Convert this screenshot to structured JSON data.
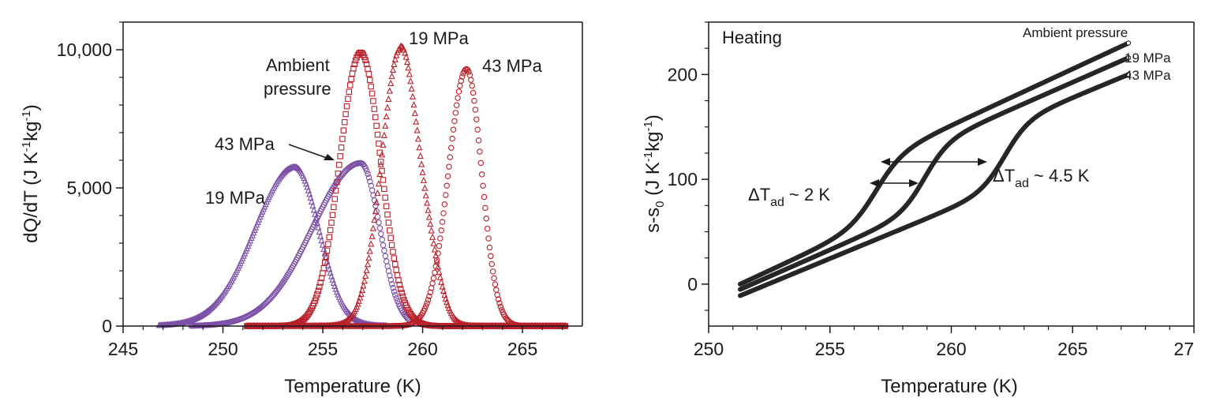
{
  "chart_data": [
    {
      "type": "scatter",
      "panel": "left",
      "xlabel": "Temperature (K)",
      "ylabel_main": "dQ/dT (J K",
      "ylabel_exp1": "-1",
      "ylabel_mid": "kg",
      "ylabel_exp2": "-1",
      "ylabel_end": ")",
      "xlim": [
        245,
        268
      ],
      "ylim": [
        0,
        11000
      ],
      "xticks": [
        "245",
        "250",
        "255",
        "260",
        "265"
      ],
      "yticks": [
        "0",
        "5,000",
        "10,000"
      ],
      "ytick_values": [
        0,
        5000,
        10000
      ],
      "grid": false,
      "annotations": {
        "label_19_left": "19 MPa",
        "label_43_left": "43 MPa",
        "label_ambient_1": "Ambient",
        "label_ambient_2": "pressure",
        "label_19_right": "19 MPa",
        "label_43_right": "43 MPa"
      },
      "series": [
        {
          "group": "cooling",
          "pressure": "19 MPa",
          "marker": "triangle",
          "color": "#7b4fa6",
          "x_range": [
            246.8,
            258.2
          ],
          "peak_x": 253.6,
          "peak_y": 5750,
          "sigma_left": 2.0,
          "sigma_right": 1.2
        },
        {
          "group": "cooling",
          "pressure": "43 MPa",
          "marker": "circle",
          "color": "#7b4fa6",
          "x_range": [
            248.4,
            259.4
          ],
          "peak_x": 256.9,
          "peak_y": 5900,
          "sigma_left": 2.4,
          "sigma_right": 0.95
        },
        {
          "group": "heating",
          "pressure": "Ambient pressure",
          "marker": "square",
          "color": "#b8202a",
          "x_range": [
            251.2,
            267.2
          ],
          "peak_x": 256.9,
          "peak_y": 9900,
          "sigma_left": 1.05,
          "sigma_right": 1.0
        },
        {
          "group": "heating",
          "pressure": "19 MPa",
          "marker": "triangle",
          "color": "#b8202a",
          "x_range": [
            251.2,
            267.2
          ],
          "peak_x": 258.9,
          "peak_y": 10050,
          "sigma_left": 0.95,
          "sigma_right": 0.85,
          "shoulder_x": 260.4,
          "shoulder_y": 1500,
          "shoulder_sigma": 0.6
        },
        {
          "group": "heating",
          "pressure": "43 MPa",
          "marker": "circle",
          "color": "#b8202a",
          "x_range": [
            251.2,
            267.2
          ],
          "peak_x": 262.2,
          "peak_y": 9300,
          "sigma_left": 0.9,
          "sigma_right": 0.75
        }
      ]
    },
    {
      "type": "line",
      "panel": "right",
      "xlabel": "Temperature (K)",
      "ylabel_main": "s-s",
      "ylabel_sub": "0",
      "ylabel_mid": " (J K",
      "ylabel_exp1": "-1",
      "ylabel_mid2": "kg",
      "ylabel_exp2": "-1",
      "ylabel_end": ")",
      "xlim": [
        250,
        270
      ],
      "ylim": [
        -40,
        250
      ],
      "xticks": [
        "250",
        "255",
        "260",
        "265",
        "27"
      ],
      "yticks": [
        "0",
        "100",
        "200"
      ],
      "ytick_values": [
        0,
        100,
        200
      ],
      "grid": false,
      "panel_title": "Heating",
      "annotations": {
        "delta_small_main": "ΔT",
        "delta_small_sub": "ad",
        "delta_small_value": " ~ 2 K",
        "delta_large_main": "ΔT",
        "delta_large_sub": "ad",
        "delta_large_value": " ~ 4.5 K"
      },
      "series": [
        {
          "name": "Ambient pressure",
          "x_start": 251.3,
          "x_end": 267.3,
          "y_start": 0,
          "y_end": 230,
          "step_center": 256.9,
          "step_height": 58,
          "step_width": 0.55,
          "color": "#262626"
        },
        {
          "name": "19 MPa",
          "x_start": 251.3,
          "x_end": 267.3,
          "y_start": -5,
          "y_end": 216,
          "step_center": 258.9,
          "step_height": 58,
          "step_width": 0.5,
          "color": "#262626"
        },
        {
          "name": "43 MPa",
          "x_start": 251.3,
          "x_end": 267.3,
          "y_start": -11,
          "y_end": 200,
          "step_center": 262.2,
          "step_height": 58,
          "step_width": 0.5,
          "color": "#262626"
        }
      ]
    }
  ]
}
